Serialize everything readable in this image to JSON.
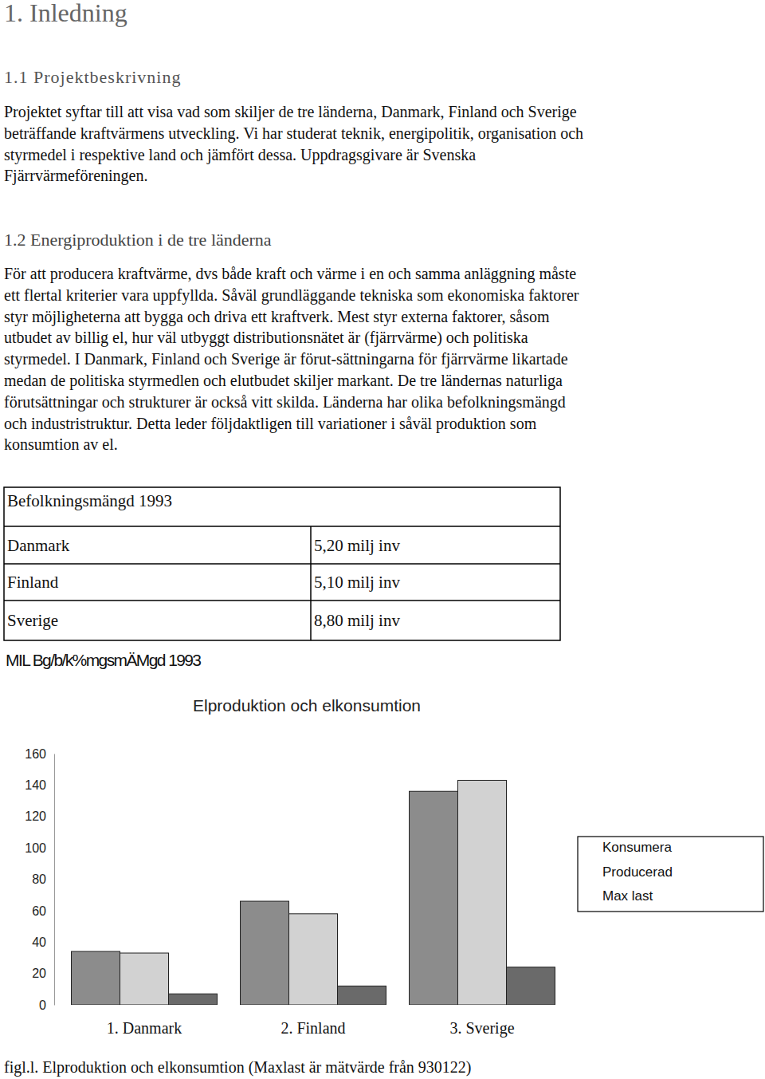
{
  "heading": "1. Inledning",
  "section1": {
    "title": "1.1 Projektbeskrivning",
    "lines": [
      "Projektet syftar till att visa vad som skiljer de tre länderna, Danmark, Finland och Sverige",
      "beträffande kraftvärmens utveckling. Vi har studerat teknik, energipolitik, organisation och",
      "styrmedel i respektive land och jämfört dessa. Uppdragsgivare är Svenska",
      "Fjärrvärmeföreningen."
    ]
  },
  "section2": {
    "title": "1.2 Energiproduktion i de tre länderna",
    "lines": [
      "För att producera kraftvärme, dvs både kraft och värme i en och samma anläggning måste",
      "ett flertal kriterier vara uppfyllda. Såväl grundläggande tekniska som ekonomiska faktorer",
      "styr möjligheterna att bygga och driva ett kraftverk. Mest styr externa faktorer, såsom",
      "utbudet av billig el, hur väl utbyggt distributionsnätet är (fjärrvärme) och politiska",
      "styrmedel. I Danmark, Finland och Sverige är förut-sättningarna för fjärrvärme likartade",
      "medan de politiska styrmedlen och elutbudet skiljer markant. De tre ländernas naturliga",
      "förutsättningar och strukturer är också vitt skilda. Länderna har olika befolkningsmängd",
      "och industristruktur. Detta leder följdaktligen till variationer i såväl produktion som",
      "konsumtion av el."
    ]
  },
  "table": {
    "header": "Befolkningsmängd 1993",
    "rows": [
      [
        "Danmark",
        "5,20 milj inv"
      ],
      [
        "Finland",
        "5,10 milj inv"
      ],
      [
        "Sverige",
        "8,80 milj inv"
      ]
    ]
  },
  "table_caption": "MIL Bg/b/k%mgsmÄMgd 1993",
  "chart_data": {
    "type": "bar",
    "title": "Elproduktion och elkonsumtion",
    "categories": [
      "1. Danmark",
      "2. Finland",
      "3. Sverige"
    ],
    "series": [
      {
        "name": "Konsumera",
        "color": "#8c8c8c",
        "values": [
          34,
          66,
          136
        ]
      },
      {
        "name": "Producerad",
        "color": "#d2d2d2",
        "values": [
          33,
          58,
          143
        ]
      },
      {
        "name": "Max last",
        "color": "#6a6a6a",
        "values": [
          7,
          12,
          24
        ]
      }
    ],
    "ylim": [
      0,
      160
    ],
    "yticks": [
      0,
      20,
      40,
      60,
      80,
      100,
      120,
      140,
      160
    ],
    "legend": "right"
  },
  "figure_caption": "figl.l. Elproduktion och elkonsumtion (Maxlast är mätvärde från 930122)"
}
